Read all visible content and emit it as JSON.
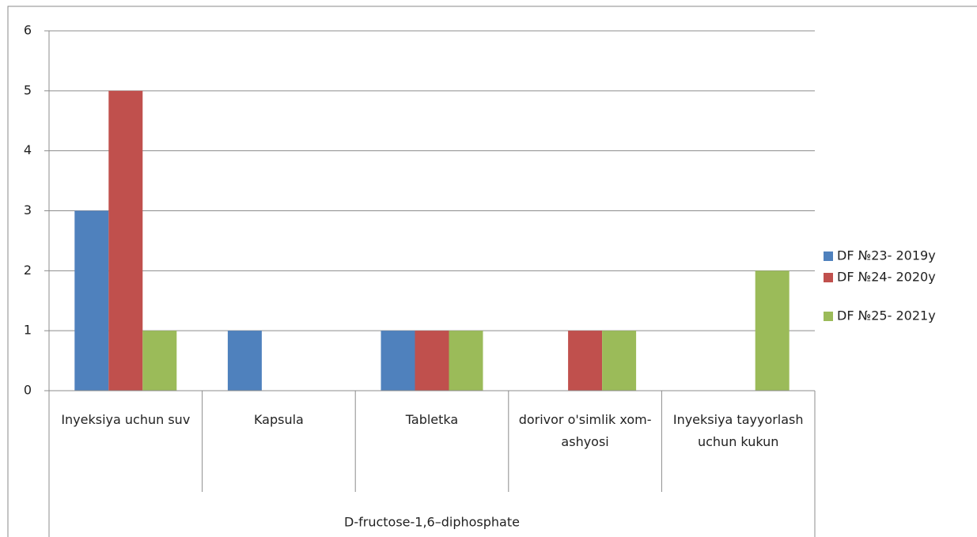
{
  "chart_data": {
    "type": "bar",
    "categories": [
      "Inyeksiya uchun suv",
      "Kapsula",
      "Tabletka",
      "dorivor o'simlik xom-ashyosi",
      "Inyeksiya tayyorlash uchun kukun"
    ],
    "group_label": "D-fructose-1,6–diphosphate",
    "series": [
      {
        "name": "DF №23- 2019y",
        "color": "#4f81bd",
        "values": [
          3,
          1,
          1,
          0,
          0
        ]
      },
      {
        "name": "DF №24- 2020y",
        "color": "#c0504d",
        "values": [
          5,
          0,
          1,
          1,
          0
        ]
      },
      {
        "name": "DF №25- 2021y",
        "color": "#9bbb59",
        "values": [
          1,
          0,
          1,
          1,
          2
        ]
      }
    ],
    "ylim": [
      0,
      6
    ],
    "yticks": [
      0,
      1,
      2,
      3,
      4,
      5,
      6
    ],
    "grid": true,
    "legend": "right"
  }
}
